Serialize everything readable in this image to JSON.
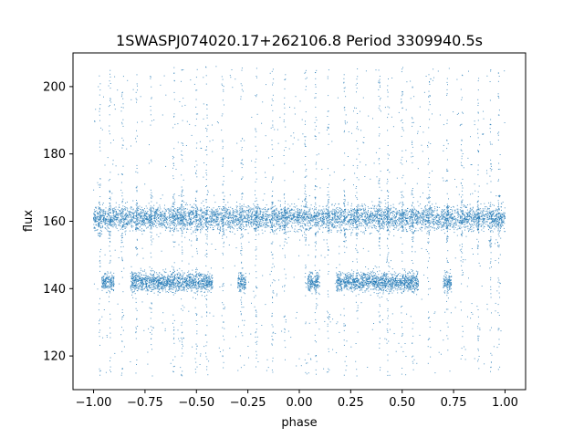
{
  "chart_data": {
    "type": "scatter",
    "title": "1SWASPJ074020.17+262106.8 Period 3309940.5s",
    "xlabel": "phase",
    "ylabel": "flux",
    "xlim": [
      -1.1,
      1.1
    ],
    "ylim": [
      110,
      210
    ],
    "x_ticks": [
      -1.0,
      -0.75,
      -0.5,
      -0.25,
      0.0,
      0.25,
      0.5,
      0.75,
      1.0
    ],
    "x_tick_labels": [
      "−1.00",
      "−0.75",
      "−0.50",
      "−0.25",
      "0.00",
      "0.25",
      "0.50",
      "0.75",
      "1.00"
    ],
    "y_ticks": [
      120,
      140,
      160,
      180,
      200
    ],
    "y_tick_labels": [
      "120",
      "140",
      "160",
      "180",
      "200"
    ],
    "grid": false,
    "series": [
      {
        "color": "#1f77b4",
        "x_range": [
          -1.0,
          1.0
        ],
        "main_band": {
          "flux": 161,
          "spread": 2.5
        },
        "low_band": {
          "flux": 142,
          "spread": 2.0,
          "phase_segments": [
            [
              -0.96,
              -0.9
            ],
            [
              -0.82,
              -0.42
            ],
            [
              -0.3,
              -0.26
            ],
            [
              0.04,
              0.1
            ],
            [
              0.18,
              0.58
            ],
            [
              0.7,
              0.74
            ]
          ]
        },
        "scatter_columns": [
          -0.97,
          -0.92,
          -0.86,
          -0.79,
          -0.72,
          -0.61,
          -0.57,
          -0.5,
          -0.45,
          -0.37,
          -0.28,
          -0.21,
          -0.13,
          -0.07,
          0.03,
          0.08,
          0.14,
          0.22,
          0.28,
          0.39,
          0.43,
          0.5,
          0.55,
          0.63,
          0.72,
          0.79,
          0.87,
          0.93,
          0.97
        ],
        "flux_outlier_range": [
          114,
          206
        ]
      }
    ]
  }
}
